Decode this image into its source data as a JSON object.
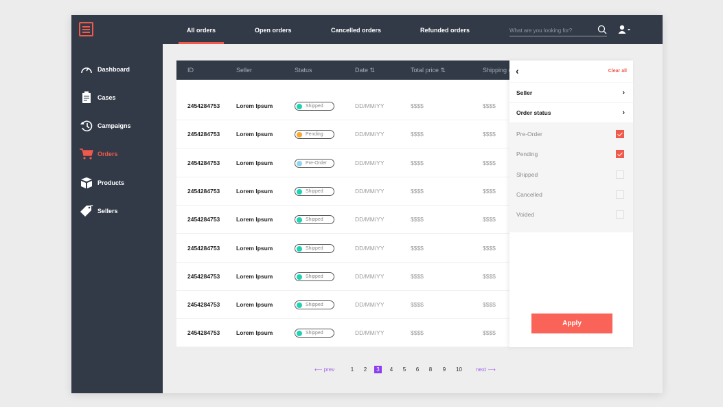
{
  "header": {
    "tabs": [
      {
        "label": "All orders",
        "active": true
      },
      {
        "label": "Open orders"
      },
      {
        "label": "Cancelled orders"
      },
      {
        "label": "Refunded orders"
      }
    ],
    "search_placeholder": "What are you looking for?",
    "icons": [
      "search-icon",
      "user-icon",
      "caret-down-icon"
    ]
  },
  "sidebar": {
    "items": [
      {
        "label": "Dashboard",
        "icon": "speedometer-icon"
      },
      {
        "label": "Cases",
        "icon": "clipboard-icon"
      },
      {
        "label": "Campaigns",
        "icon": "history-icon"
      },
      {
        "label": "Orders",
        "icon": "cart-icon",
        "active": true
      },
      {
        "label": "Products",
        "icon": "box-icon"
      },
      {
        "label": "Sellers",
        "icon": "tag-icon"
      }
    ]
  },
  "table": {
    "columns": [
      "ID",
      "Seller",
      "Status",
      "Date ⇅",
      "Total price ⇅",
      "Shipping c"
    ],
    "rows": [
      {
        "id": "2454284753",
        "seller": "Lorem Ipsum",
        "status": "Shipped",
        "date": "DD/MM/YY",
        "total": "$$$$",
        "shipping": "$$$$"
      },
      {
        "id": "2454284753",
        "seller": "Lorem Ipsum",
        "status": "Pending",
        "date": "DD/MM/YY",
        "total": "$$$$",
        "shipping": "$$$$"
      },
      {
        "id": "2454284753",
        "seller": "Lorem Ipsum",
        "status": "Pre-Order",
        "date": "DD/MM/YY",
        "total": "$$$$",
        "shipping": "$$$$"
      },
      {
        "id": "2454284753",
        "seller": "Lorem Ipsum",
        "status": "Shipped",
        "date": "DD/MM/YY",
        "total": "$$$$",
        "shipping": "$$$$"
      },
      {
        "id": "2454284753",
        "seller": "Lorem Ipsum",
        "status": "Shipped",
        "date": "DD/MM/YY",
        "total": "$$$$",
        "shipping": "$$$$"
      },
      {
        "id": "2454284753",
        "seller": "Lorem Ipsum",
        "status": "Shipped",
        "date": "DD/MM/YY",
        "total": "$$$$",
        "shipping": "$$$$"
      },
      {
        "id": "2454284753",
        "seller": "Lorem Ipsum",
        "status": "Shipped",
        "date": "DD/MM/YY",
        "total": "$$$$",
        "shipping": "$$$$"
      },
      {
        "id": "2454284753",
        "seller": "Lorem Ipsum",
        "status": "Shipped",
        "date": "DD/MM/YY",
        "total": "$$$$",
        "shipping": "$$$$"
      },
      {
        "id": "2454284753",
        "seller": "Lorem Ipsum",
        "status": "Shipped",
        "date": "DD/MM/YY",
        "total": "$$$$",
        "shipping": "$$$$"
      }
    ]
  },
  "status_colors": {
    "Shipped": "#1ed3b4",
    "Pending": "#f7a933",
    "Pre-Order": "#8fd3ef"
  },
  "filter": {
    "back": "‹",
    "clear_all": "Clear all",
    "sections": [
      "Seller",
      "Order status"
    ],
    "options": [
      {
        "label": "Pre-Order",
        "checked": true
      },
      {
        "label": "Pending",
        "checked": true
      },
      {
        "label": "Shipped",
        "checked": false
      },
      {
        "label": "Cancelled",
        "checked": false
      },
      {
        "label": "Voided",
        "checked": false
      }
    ],
    "apply": "Apply"
  },
  "pagination": {
    "prev": "⟵ prev",
    "next": "next ⟶",
    "pages": [
      "1",
      "2",
      "3",
      "4",
      "5",
      "6",
      "8",
      "9",
      "10"
    ],
    "current": "3"
  },
  "colors": {
    "accent": "#f0594b",
    "dark": "#323a48",
    "apply": "#fa6458",
    "page_current": "#8b3ff0"
  }
}
